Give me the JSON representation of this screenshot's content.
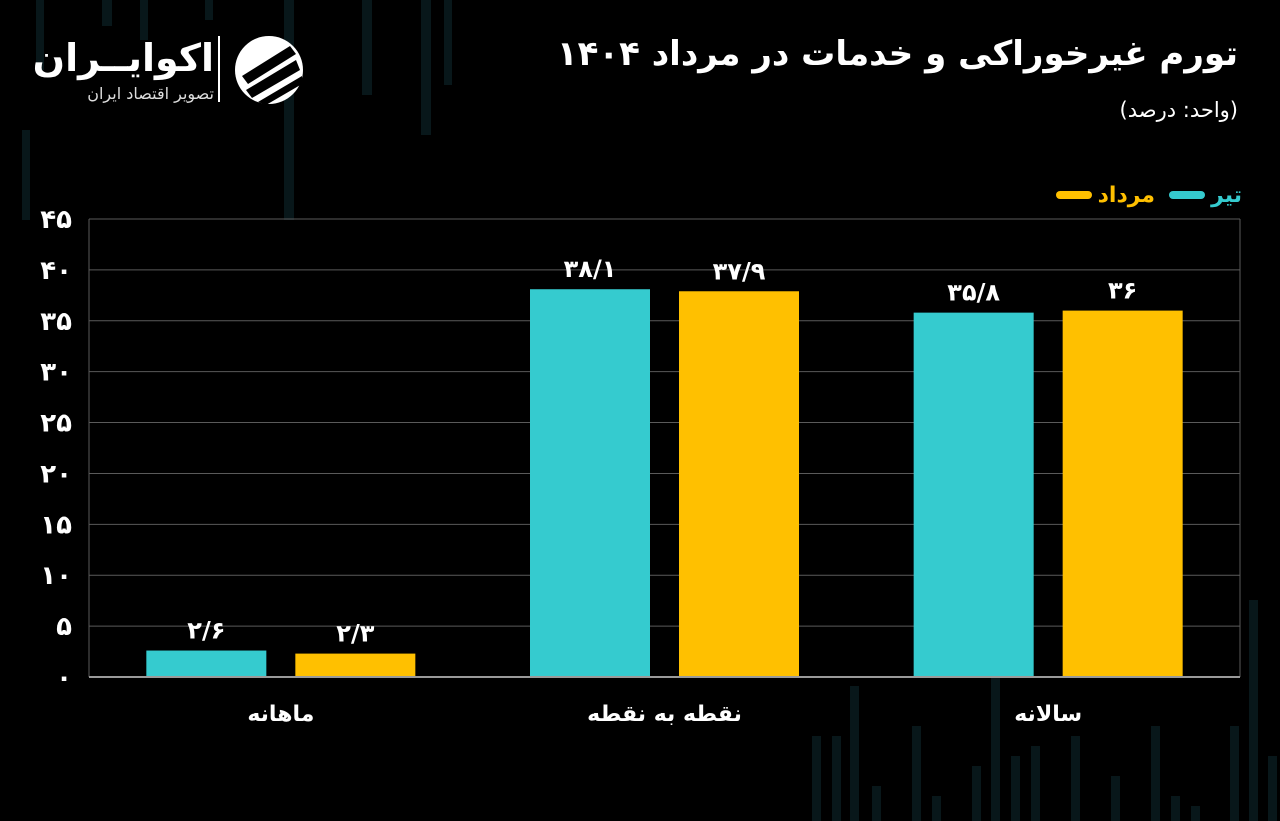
{
  "header": {
    "title": "تورم غیرخوراکی و خدمات در مرداد ۱۴۰۴",
    "unit": "(واحد: درصد)"
  },
  "logo": {
    "name": "اکوایــران",
    "tagline": "تصویر اقتصاد ایران",
    "icon": "ecoiran-swirl-icon"
  },
  "colors": {
    "background": "#000000",
    "tir": "#35CBCF",
    "mordad": "#FFC000",
    "grid": "#5a5a5a",
    "axis": "#9a9a9a"
  },
  "legend": [
    {
      "label": "مرداد",
      "color": "#FFC000"
    },
    {
      "label": "تیر",
      "color": "#35CBCF"
    }
  ],
  "chart_data": {
    "type": "bar",
    "categories": [
      "ماهانه",
      "نقطه به نقطه",
      "سالانه"
    ],
    "series": [
      {
        "name": "تیر",
        "values": [
          2.6,
          38.1,
          35.8
        ],
        "labels": [
          "۲/۶",
          "۳۸/۱",
          "۳۵/۸"
        ],
        "color": "#35CBCF"
      },
      {
        "name": "مرداد",
        "values": [
          2.3,
          37.9,
          36
        ],
        "labels": [
          "۲/۳",
          "۳۷/۹",
          "۳۶"
        ],
        "color": "#FFC000"
      }
    ],
    "yticks": [
      0,
      5,
      10,
      15,
      20,
      25,
      30,
      35,
      40,
      45
    ],
    "ytick_labels": [
      "۰",
      "۵",
      "۱۰",
      "۱۵",
      "۲۰",
      "۲۵",
      "۳۰",
      "۳۵",
      "۴۰",
      "۴۵"
    ],
    "ylim": [
      0,
      45
    ],
    "grid": true,
    "legend_position": "top-right"
  }
}
